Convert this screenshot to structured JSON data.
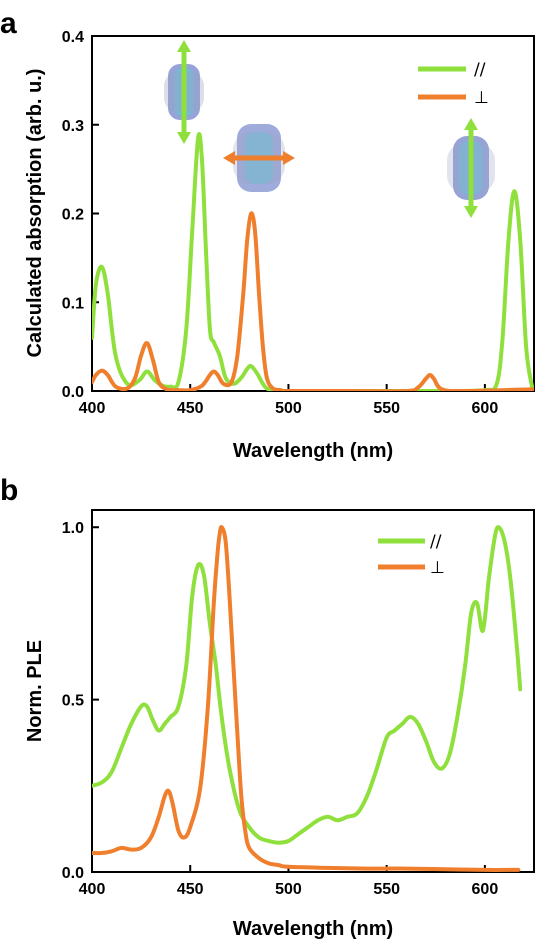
{
  "colors": {
    "parallel": "#8fe03c",
    "perpendicular": "#f07f2d"
  },
  "chart_data": [
    {
      "panel_label": "a",
      "type": "line",
      "xlabel": "Wavelength (nm)",
      "ylabel": "Calculated absorption (arb. u.)",
      "xlim": [
        400,
        625
      ],
      "ylim": [
        0,
        0.4
      ],
      "xticks": [
        "400",
        "450",
        "500",
        "550",
        "600"
      ],
      "yticks": [
        "0.0",
        "0.1",
        "0.2",
        "0.3",
        "0.4"
      ],
      "legend": [
        "//",
        "⊥"
      ],
      "legend_position": "top-right",
      "grid": false,
      "series": [
        {
          "name": "//",
          "x": [
            400,
            402,
            405,
            408,
            412,
            418,
            424,
            428,
            432,
            436,
            440,
            444,
            448,
            451,
            454,
            456,
            458,
            460,
            462,
            465,
            468,
            472,
            476,
            479,
            481,
            484,
            488,
            492,
            500,
            520,
            540,
            560,
            580,
            600,
            606,
            609,
            612,
            615,
            618,
            621,
            624,
            625
          ],
          "y": [
            0.06,
            0.12,
            0.14,
            0.11,
            0.04,
            0.008,
            0.012,
            0.022,
            0.012,
            0.006,
            0.005,
            0.01,
            0.07,
            0.18,
            0.285,
            0.26,
            0.16,
            0.07,
            0.055,
            0.04,
            0.015,
            0.008,
            0.015,
            0.025,
            0.028,
            0.02,
            0.005,
            0.001,
            0.0,
            0.0,
            0.0,
            0.0,
            0.0,
            0.001,
            0.008,
            0.06,
            0.17,
            0.225,
            0.17,
            0.05,
            0.005,
            0.002
          ]
        },
        {
          "name": "⊥",
          "x": [
            400,
            402,
            405,
            408,
            412,
            418,
            422,
            425,
            428,
            431,
            434,
            438,
            444,
            450,
            456,
            460,
            462,
            464,
            467,
            471,
            474,
            477,
            479,
            481,
            483,
            485,
            487,
            489,
            492,
            496,
            500,
            530,
            560,
            566,
            570,
            572,
            574,
            578,
            590,
            625
          ],
          "y": [
            0.01,
            0.018,
            0.023,
            0.018,
            0.005,
            0.003,
            0.015,
            0.04,
            0.054,
            0.035,
            0.01,
            0.002,
            0.001,
            0.001,
            0.006,
            0.018,
            0.022,
            0.018,
            0.008,
            0.01,
            0.04,
            0.11,
            0.17,
            0.2,
            0.18,
            0.11,
            0.05,
            0.015,
            0.003,
            0.001,
            0.0,
            0.0,
            0.0,
            0.004,
            0.014,
            0.018,
            0.014,
            0.002,
            0.0,
            0.002
          ]
        }
      ]
    },
    {
      "panel_label": "b",
      "type": "line",
      "xlabel": "Wavelength (nm)",
      "ylabel": "Norm. PLE",
      "xlim": [
        400,
        625
      ],
      "ylim": [
        0,
        1.05
      ],
      "xticks": [
        "400",
        "450",
        "500",
        "550",
        "600"
      ],
      "yticks": [
        "0.0",
        "0.5",
        "1.0"
      ],
      "legend": [
        "//",
        "⊥"
      ],
      "legend_position": "top-right",
      "grid": false,
      "series": [
        {
          "name": "//",
          "x": [
            400,
            405,
            410,
            415,
            420,
            425,
            428,
            431,
            434,
            437,
            440,
            444,
            448,
            451,
            454,
            457,
            460,
            463,
            466,
            470,
            475,
            480,
            485,
            490,
            495,
            500,
            505,
            510,
            515,
            520,
            525,
            530,
            535,
            540,
            545,
            550,
            554,
            558,
            562,
            566,
            570,
            574,
            578,
            582,
            586,
            590,
            593,
            596,
            599,
            602,
            605,
            607,
            610,
            613,
            616,
            618
          ],
          "y": [
            0.25,
            0.26,
            0.29,
            0.36,
            0.43,
            0.48,
            0.48,
            0.44,
            0.41,
            0.43,
            0.45,
            0.48,
            0.6,
            0.8,
            0.89,
            0.86,
            0.72,
            0.6,
            0.45,
            0.3,
            0.18,
            0.13,
            0.1,
            0.09,
            0.085,
            0.09,
            0.11,
            0.13,
            0.15,
            0.16,
            0.15,
            0.16,
            0.17,
            0.22,
            0.3,
            0.39,
            0.41,
            0.43,
            0.45,
            0.43,
            0.38,
            0.32,
            0.3,
            0.34,
            0.45,
            0.6,
            0.75,
            0.78,
            0.7,
            0.85,
            0.97,
            1.0,
            0.96,
            0.85,
            0.67,
            0.53
          ]
        },
        {
          "name": "⊥",
          "x": [
            400,
            405,
            410,
            415,
            420,
            425,
            430,
            434,
            437,
            439,
            441,
            444,
            447,
            450,
            455,
            459,
            462,
            464,
            465,
            466,
            468,
            470,
            472,
            474,
            476,
            478,
            480,
            485,
            490,
            495,
            500,
            520,
            540,
            560,
            580,
            600,
            617
          ],
          "y": [
            0.055,
            0.055,
            0.06,
            0.07,
            0.065,
            0.07,
            0.1,
            0.16,
            0.22,
            0.235,
            0.2,
            0.12,
            0.1,
            0.13,
            0.24,
            0.48,
            0.78,
            0.93,
            0.98,
            1.0,
            0.96,
            0.8,
            0.6,
            0.4,
            0.22,
            0.12,
            0.07,
            0.04,
            0.025,
            0.02,
            0.015,
            0.012,
            0.01,
            0.01,
            0.008,
            0.006,
            0.006
          ]
        }
      ]
    }
  ]
}
